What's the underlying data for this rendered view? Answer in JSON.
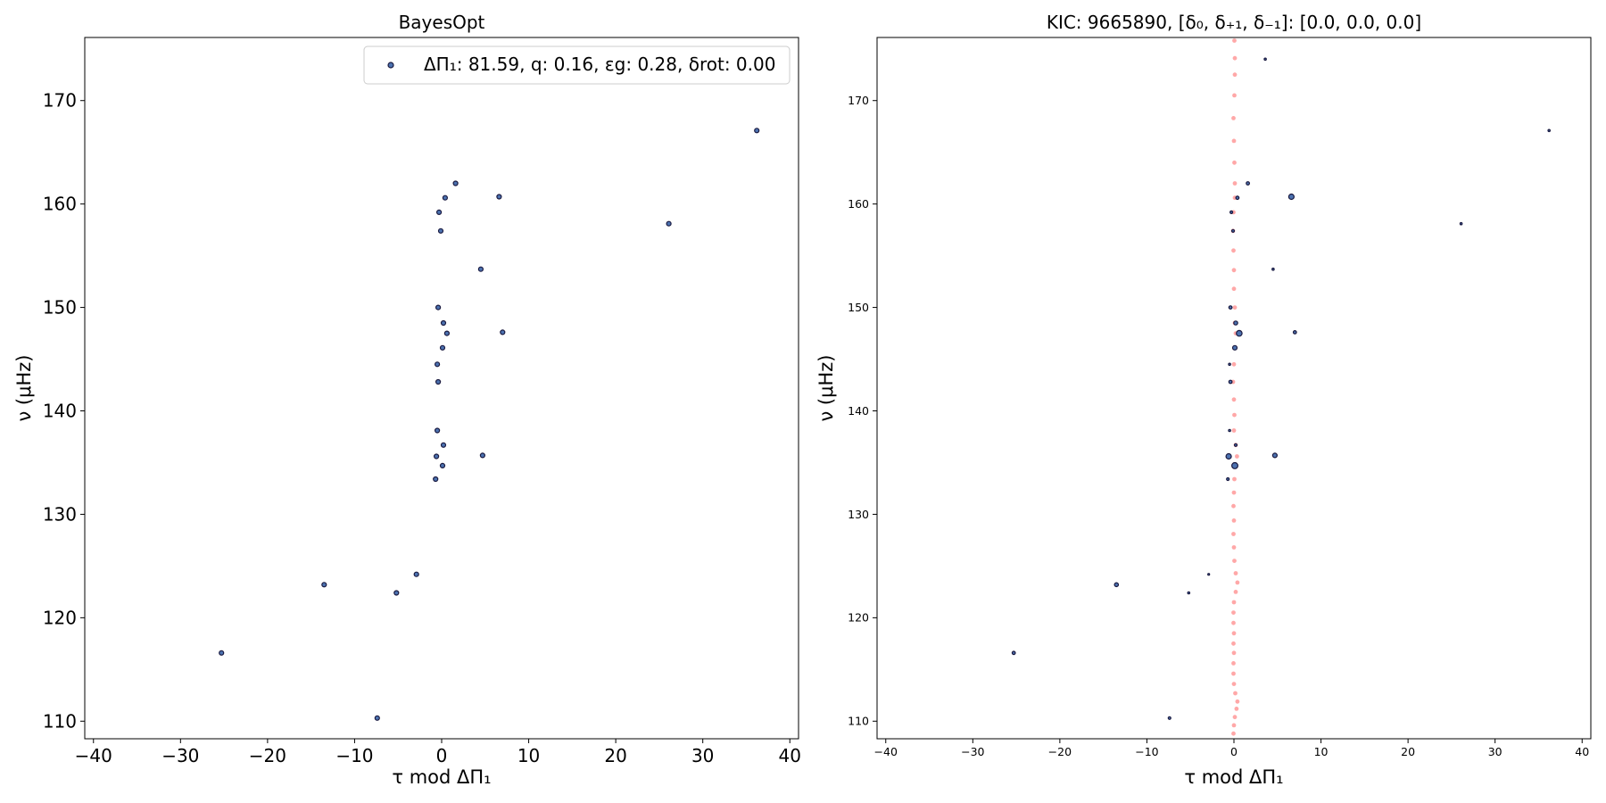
{
  "chart_data": [
    {
      "type": "scatter",
      "title": "BayesOpt",
      "xlabel": "τ mod ΔΠ₁",
      "ylabel": "ν (μHz)",
      "xlim": [
        -41,
        41
      ],
      "ylim": [
        108.3,
        176.1
      ],
      "xticks": [
        -40,
        -30,
        -20,
        -10,
        0,
        10,
        20,
        30,
        40
      ],
      "xtick_labels": [
        "−40",
        "−30",
        "−20",
        "−10",
        "0",
        "10",
        "20",
        "30",
        "40"
      ],
      "yticks": [
        110,
        120,
        130,
        140,
        150,
        160,
        170
      ],
      "ytick_labels": [
        "110",
        "120",
        "130",
        "140",
        "150",
        "160",
        "170"
      ],
      "grid": false,
      "legend": {
        "placement": "top-right",
        "entries": [
          {
            "delta_pi": "ΔΠ₁: 81.59, ",
            "q": "q: 0.16, ",
            "eps": "εg: 0.28, ",
            "drot": "δrot: 0.00"
          }
        ]
      },
      "series": [
        {
          "marker_color": "#4c72b0",
          "edge_color": "#1a1a40",
          "points": [
            {
              "x": 36.2,
              "y": 167.1,
              "s": 2.5
            },
            {
              "x": 1.6,
              "y": 162.0,
              "s": 2.5
            },
            {
              "x": 6.6,
              "y": 160.7,
              "s": 2.5
            },
            {
              "x": 0.4,
              "y": 160.6,
              "s": 2.5
            },
            {
              "x": -0.3,
              "y": 159.2,
              "s": 2.5
            },
            {
              "x": 26.1,
              "y": 158.1,
              "s": 2.5
            },
            {
              "x": -0.1,
              "y": 157.4,
              "s": 2.5
            },
            {
              "x": 4.5,
              "y": 153.7,
              "s": 2.5
            },
            {
              "x": -0.4,
              "y": 150.0,
              "s": 2.5
            },
            {
              "x": 0.2,
              "y": 148.5,
              "s": 2.5
            },
            {
              "x": 7.0,
              "y": 147.6,
              "s": 2.5
            },
            {
              "x": 0.6,
              "y": 147.5,
              "s": 2.5
            },
            {
              "x": 0.1,
              "y": 146.1,
              "s": 2.5
            },
            {
              "x": -0.5,
              "y": 144.5,
              "s": 2.5
            },
            {
              "x": -0.4,
              "y": 142.8,
              "s": 2.5
            },
            {
              "x": -0.5,
              "y": 138.1,
              "s": 2.5
            },
            {
              "x": 0.2,
              "y": 136.7,
              "s": 2.5
            },
            {
              "x": 4.7,
              "y": 135.7,
              "s": 2.5
            },
            {
              "x": -0.6,
              "y": 135.6,
              "s": 2.5
            },
            {
              "x": 0.1,
              "y": 134.7,
              "s": 2.5
            },
            {
              "x": -0.7,
              "y": 133.4,
              "s": 2.5
            },
            {
              "x": -2.9,
              "y": 124.2,
              "s": 2.5
            },
            {
              "x": -13.5,
              "y": 123.2,
              "s": 2.5
            },
            {
              "x": -5.2,
              "y": 122.4,
              "s": 2.5
            },
            {
              "x": -25.3,
              "y": 116.6,
              "s": 2.5
            },
            {
              "x": -7.4,
              "y": 110.3,
              "s": 2.5
            }
          ]
        }
      ]
    },
    {
      "type": "scatter",
      "title": "KIC: 9665890, [δ₀, δ₊₁, δ₋₁]: [0.0, 0.0, 0.0]",
      "xlabel": "τ mod ΔΠ₁",
      "ylabel": "ν (μHz)",
      "xlim": [
        -41,
        41
      ],
      "ylim": [
        108.3,
        176.1
      ],
      "xticks": [
        -40,
        -30,
        -20,
        -10,
        0,
        10,
        20,
        30,
        40
      ],
      "xtick_labels": [
        "−40",
        "−30",
        "−20",
        "−10",
        "0",
        "10",
        "20",
        "30",
        "40"
      ],
      "yticks": [
        110,
        120,
        130,
        140,
        150,
        160,
        170
      ],
      "ytick_labels": [
        "110",
        "120",
        "130",
        "140",
        "150",
        "160",
        "170"
      ],
      "grid": false,
      "series": [
        {
          "marker_color": "#ff9999",
          "edge_color": "#ff9999",
          "points": [
            {
              "y": 175.8,
              "x": 0.05
            },
            {
              "y": 174.1,
              "x": 0.1
            },
            {
              "y": 172.5,
              "x": 0.1
            },
            {
              "y": 170.5,
              "x": 0.05
            },
            {
              "y": 168.3,
              "x": -0.05
            },
            {
              "y": 166.1,
              "x": 0.0
            },
            {
              "y": 164.0,
              "x": 0.05
            },
            {
              "y": 162.0,
              "x": 0.1
            },
            {
              "y": 160.6,
              "x": 0.1
            },
            {
              "y": 159.2,
              "x": -0.05
            },
            {
              "y": 157.4,
              "x": -0.1
            },
            {
              "y": 155.5,
              "x": -0.05
            },
            {
              "y": 153.6,
              "x": 0.0
            },
            {
              "y": 151.8,
              "x": 0.0
            },
            {
              "y": 150.0,
              "x": 0.1
            },
            {
              "y": 148.5,
              "x": 0.1
            },
            {
              "y": 147.5,
              "x": 0.2
            },
            {
              "y": 146.1,
              "x": 0.15
            },
            {
              "y": 144.5,
              "x": 0.0
            },
            {
              "y": 142.8,
              "x": -0.1
            },
            {
              "y": 141.1,
              "x": 0.0
            },
            {
              "y": 139.6,
              "x": 0.05
            },
            {
              "y": 138.1,
              "x": 0.0
            },
            {
              "y": 136.7,
              "x": 0.2
            },
            {
              "y": 135.6,
              "x": 0.35
            },
            {
              "y": 134.6,
              "x": 0.1
            },
            {
              "y": 133.4,
              "x": 0.05
            },
            {
              "y": 132.1,
              "x": 0.0
            },
            {
              "y": 130.8,
              "x": -0.05
            },
            {
              "y": 129.4,
              "x": 0.0
            },
            {
              "y": 128.1,
              "x": -0.05
            },
            {
              "y": 126.8,
              "x": 0.0
            },
            {
              "y": 125.5,
              "x": 0.05
            },
            {
              "y": 124.3,
              "x": 0.2
            },
            {
              "y": 123.4,
              "x": 0.4
            },
            {
              "y": 122.5,
              "x": 0.2
            },
            {
              "y": 121.5,
              "x": 0.0
            },
            {
              "y": 120.5,
              "x": -0.05
            },
            {
              "y": 119.5,
              "x": -0.05
            },
            {
              "y": 118.5,
              "x": 0.0
            },
            {
              "y": 117.5,
              "x": -0.05
            },
            {
              "y": 116.6,
              "x": 0.0
            },
            {
              "y": 115.6,
              "x": -0.05
            },
            {
              "y": 114.6,
              "x": -0.05
            },
            {
              "y": 113.6,
              "x": 0.0
            },
            {
              "y": 112.7,
              "x": 0.15
            },
            {
              "y": 111.9,
              "x": 0.4
            },
            {
              "y": 111.2,
              "x": 0.3
            },
            {
              "y": 110.4,
              "x": 0.1
            },
            {
              "y": 109.6,
              "x": 0.0
            },
            {
              "y": 108.8,
              "x": -0.05
            }
          ]
        },
        {
          "marker_color": "#4c72b0",
          "edge_color": "#1a1a40",
          "points": [
            {
              "x": 3.6,
              "y": 174.0,
              "s": 1.2
            },
            {
              "x": 36.2,
              "y": 167.1,
              "s": 1.2
            },
            {
              "x": 1.6,
              "y": 162.0,
              "s": 1.8
            },
            {
              "x": 6.6,
              "y": 160.7,
              "s": 3.0
            },
            {
              "x": 0.4,
              "y": 160.6,
              "s": 1.8
            },
            {
              "x": -0.3,
              "y": 159.2,
              "s": 1.5
            },
            {
              "x": 26.1,
              "y": 158.1,
              "s": 1.2
            },
            {
              "x": -0.1,
              "y": 157.4,
              "s": 1.5
            },
            {
              "x": 4.5,
              "y": 153.7,
              "s": 1.2
            },
            {
              "x": -0.4,
              "y": 150.0,
              "s": 1.8
            },
            {
              "x": 0.2,
              "y": 148.5,
              "s": 2.2
            },
            {
              "x": 7.0,
              "y": 147.6,
              "s": 1.8
            },
            {
              "x": 0.6,
              "y": 147.5,
              "s": 3.2
            },
            {
              "x": 0.1,
              "y": 146.1,
              "s": 2.5
            },
            {
              "x": -0.5,
              "y": 144.5,
              "s": 1.2
            },
            {
              "x": -0.4,
              "y": 142.8,
              "s": 1.8
            },
            {
              "x": -0.5,
              "y": 138.1,
              "s": 1.2
            },
            {
              "x": 0.2,
              "y": 136.7,
              "s": 1.5
            },
            {
              "x": 4.7,
              "y": 135.7,
              "s": 2.5
            },
            {
              "x": -0.6,
              "y": 135.6,
              "s": 3.0
            },
            {
              "x": 0.1,
              "y": 134.7,
              "s": 3.4
            },
            {
              "x": -0.7,
              "y": 133.4,
              "s": 1.5
            },
            {
              "x": -2.9,
              "y": 124.2,
              "s": 1.0
            },
            {
              "x": -13.5,
              "y": 123.2,
              "s": 2.2
            },
            {
              "x": -5.2,
              "y": 122.4,
              "s": 1.2
            },
            {
              "x": -25.3,
              "y": 116.6,
              "s": 1.8
            },
            {
              "x": -7.4,
              "y": 110.3,
              "s": 1.5
            }
          ]
        }
      ]
    }
  ]
}
